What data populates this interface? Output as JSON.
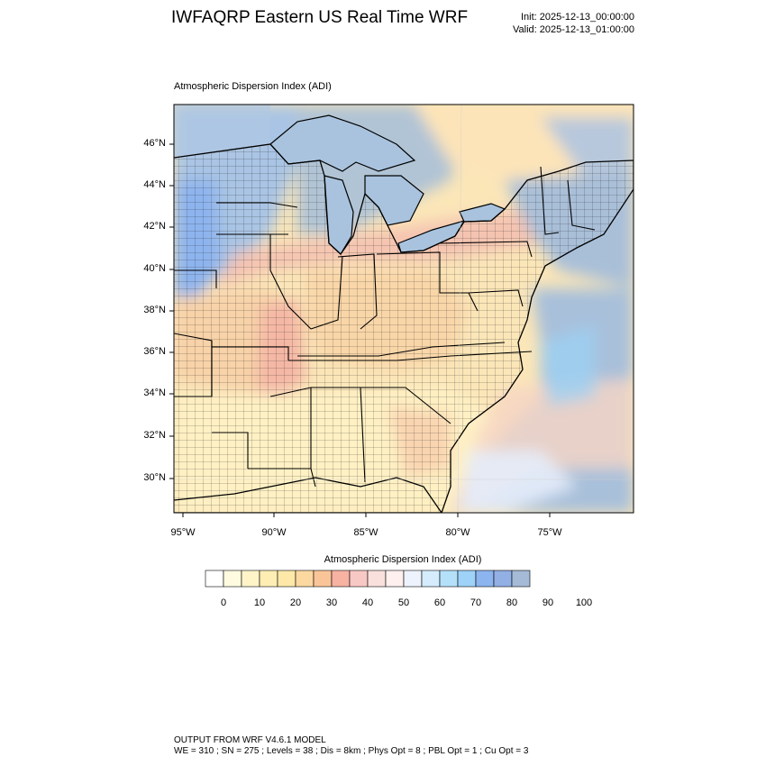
{
  "header": {
    "title": "IWFAQRP Eastern US Real Time WRF",
    "init": "Init: 2025-12-13_00:00:00",
    "valid": "Valid: 2025-12-13_01:00:00"
  },
  "panel": {
    "title": "Atmospheric Dispersion Index   (ADI)",
    "lat_labels": [
      "46°N",
      "44°N",
      "42°N",
      "40°N",
      "38°N",
      "36°N",
      "34°N",
      "32°N",
      "30°N"
    ],
    "lon_labels": [
      "95°W",
      "90°W",
      "85°W",
      "80°W",
      "75°W"
    ]
  },
  "colorbar": {
    "title": "Atmospheric Dispersion Index  (ADI)",
    "colors": [
      "#ffffff",
      "#fffbe0",
      "#fff4c8",
      "#ffeeb4",
      "#fde8a8",
      "#fbd8a0",
      "#f9c598",
      "#f7b2a2",
      "#f8c8c4",
      "#fae0dc",
      "#fdf0ee",
      "#eef2fc",
      "#d4ecfc",
      "#b4e0fa",
      "#9ed2f8",
      "#8cb4ee",
      "#92b0e4",
      "#a4bad6"
    ],
    "labels": [
      "0",
      "10",
      "20",
      "30",
      "40",
      "50",
      "60",
      "70",
      "80",
      "90",
      "100"
    ]
  },
  "footer": {
    "line1": "OUTPUT FROM WRF V4.6.1 MODEL",
    "line2": "WE = 310 ; SN = 275 ; Levels = 38 ; Dis = 8km ; Phys Opt = 8 ; PBL Opt = 1 ; Cu Opt = 3"
  }
}
